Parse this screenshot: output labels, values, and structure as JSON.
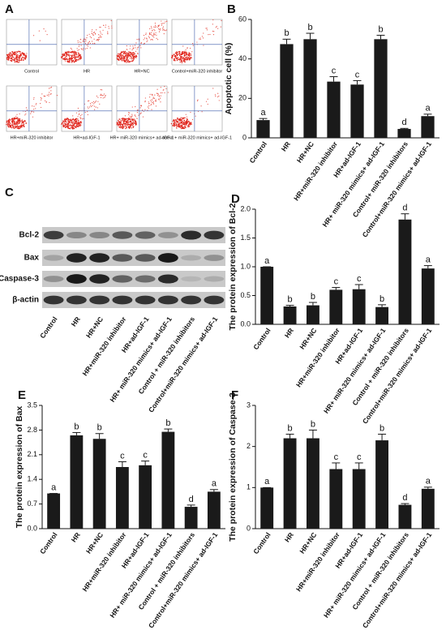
{
  "flow": {
    "label": "A",
    "plots": [
      "Control",
      "HR",
      "HR+NC",
      "Control+miR-320 inhibitor",
      "HR+miR-320 inhibitor",
      "HR+ad-IGF-1",
      "HR+ miR-320 mimics+ ad-IGF-1",
      "ontrol + miR-320 mimics+ ad-IGF-1"
    ]
  },
  "blot": {
    "label": "C",
    "rows": [
      "Bcl-2",
      "Bax",
      "Caspase-3",
      "β-actin"
    ],
    "lanes": [
      "Control",
      "HR",
      "HR+NC",
      "HR+miR-320 inhibitor",
      "HR+ad-IGF-1",
      "HR+ miR-320 mimics+ ad-IGF-1",
      "Control + miR-320 inhibitors",
      "Control+miR-320 mimics+ ad-IGF-1"
    ]
  },
  "chart_data": [
    {
      "type": "bar",
      "panel": "B",
      "y_label": "Apoptotic cell (%)",
      "color": "#1a1a1a",
      "categories": [
        "Control",
        "HR",
        "HR+NC",
        "HR+miR-320 inhibitor",
        "HR+ad-IGF-1",
        "HR+ miR-320 mimics+ ad-IGF-1",
        "Control+ miR-320 inhibitors",
        "Control+miR-320 mimics+ ad-IGF-1"
      ],
      "values": [
        9,
        47.5,
        50,
        28.5,
        27,
        50,
        4.5,
        11
      ],
      "errors": [
        0.8,
        2.5,
        3,
        2.5,
        2,
        2,
        0.3,
        1
      ],
      "letters": [
        "a",
        "b",
        "b",
        "c",
        "c",
        "b",
        "d",
        "a"
      ],
      "ylim": [
        0,
        60
      ],
      "yticks": [
        0,
        20,
        40,
        60
      ]
    },
    {
      "type": "bar",
      "panel": "D",
      "y_label": "The protein expression of Bcl-2",
      "color": "#1a1a1a",
      "categories": [
        "Control",
        "HR",
        "HR+NC",
        "HR+miR-320 inhibitor",
        "HR+ad-IGF-1",
        "HR+ miR-320 mimics+ ad-IGF-1",
        "Control + miR-320 inhibitors",
        "Control+miR-320 mimics+ ad-IGF-1"
      ],
      "values": [
        1.0,
        0.31,
        0.33,
        0.6,
        0.61,
        0.3,
        1.82,
        0.97
      ],
      "errors": [
        0,
        0.02,
        0.05,
        0.04,
        0.08,
        0.04,
        0.1,
        0.05
      ],
      "letters": [
        "a",
        "b",
        "b",
        "c",
        "c",
        "b",
        "d",
        "a"
      ],
      "ylim": [
        0,
        2
      ],
      "yticks": [
        {
          "value": 0,
          "label": "0.0"
        },
        {
          "value": 0.5,
          "label": "0.5"
        },
        {
          "value": 1,
          "label": "1.0"
        },
        {
          "value": 1.5,
          "label": "1.5"
        },
        {
          "value": 2,
          "label": "2.0"
        }
      ]
    },
    {
      "type": "bar",
      "panel": "E",
      "y_label": "The protein expression of Bax",
      "color": "#1a1a1a",
      "categories": [
        "Control",
        "HR",
        "HR+NC",
        "HR+miR-320 inhibitor",
        "HR+ad-IGF-1",
        "HR+ miR-320 mimics+ ad-IGF-1",
        "Control + miR-320 inhibitors",
        "Control+miR-320 mimics+ ad-IGF-1"
      ],
      "values": [
        1.0,
        2.65,
        2.55,
        1.75,
        1.8,
        2.75,
        0.62,
        1.05
      ],
      "errors": [
        0,
        0.08,
        0.15,
        0.15,
        0.12,
        0.08,
        0.05,
        0.06
      ],
      "letters": [
        "a",
        "b",
        "b",
        "c",
        "c",
        "b",
        "d",
        "a"
      ],
      "ylim": [
        0,
        3.5
      ],
      "yticks": [
        {
          "value": 0,
          "label": "0.0"
        },
        0.7,
        1.4,
        2.1,
        2.8,
        3.5
      ]
    },
    {
      "type": "bar",
      "panel": "F",
      "y_label": "The protein expression of Caspase-3",
      "color": "#1a1a1a",
      "categories": [
        "Control",
        "HR",
        "HR+NC",
        "HR+miR-320 inhibitor",
        "HR+ad-IGF-1",
        "HR+ miR-320 mimics+ ad-IGF-1",
        "Control + miR-320 inhibitors",
        "Control+miR-320 mimics+ ad-IGF-1"
      ],
      "values": [
        1.0,
        2.2,
        2.2,
        1.45,
        1.45,
        2.15,
        0.58,
        0.97
      ],
      "errors": [
        0,
        0.1,
        0.2,
        0.15,
        0.15,
        0.15,
        0.03,
        0.04
      ],
      "letters": [
        "a",
        "b",
        "b",
        "c",
        "c",
        "b",
        "d",
        "a"
      ],
      "ylim": [
        0,
        3
      ],
      "yticks": [
        0,
        1,
        2,
        3
      ]
    }
  ]
}
